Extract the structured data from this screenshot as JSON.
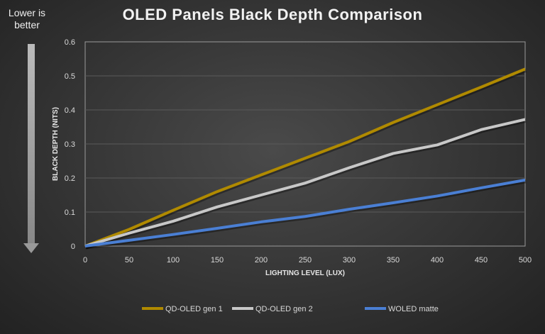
{
  "chart_data": {
    "type": "line",
    "title": "OLED Panels Black Depth Comparison",
    "annotation": "Lower is better",
    "xlabel": "LIGHTING LEVEL (LUX)",
    "ylabel": "BLACK DEPTH (NITS)",
    "xlim": [
      0,
      500
    ],
    "ylim": [
      0,
      0.6
    ],
    "xticks": [
      0,
      50,
      100,
      150,
      200,
      250,
      300,
      350,
      400,
      450,
      500
    ],
    "yticks": [
      0,
      0.1,
      0.2,
      0.3,
      0.4,
      0.5,
      0.6
    ],
    "grid": true,
    "legend": "bottom",
    "x": [
      0,
      50,
      100,
      150,
      200,
      250,
      300,
      350,
      400,
      450,
      500
    ],
    "series": [
      {
        "name": "QD-OLED gen 1",
        "color": "#b08a00",
        "values": [
          0,
          0.049,
          0.105,
          0.16,
          0.209,
          0.258,
          0.307,
          0.363,
          0.415,
          0.467,
          0.52
        ]
      },
      {
        "name": "QD-OLED gen 2",
        "color": "#c8c8c8",
        "values": [
          0,
          0.038,
          0.073,
          0.115,
          0.15,
          0.185,
          0.23,
          0.272,
          0.297,
          0.342,
          0.372
        ]
      },
      {
        "name": "WOLED matte",
        "color": "#4a7fd4",
        "values": [
          0,
          0.017,
          0.034,
          0.052,
          0.071,
          0.087,
          0.108,
          0.127,
          0.147,
          0.171,
          0.194
        ]
      }
    ]
  }
}
